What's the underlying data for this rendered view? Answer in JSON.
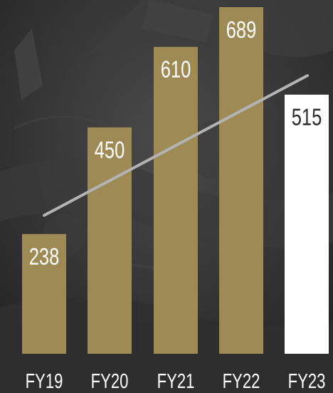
{
  "chart_data": {
    "type": "bar",
    "categories": [
      "FY19",
      "FY20",
      "FY21",
      "FY22",
      "FY23"
    ],
    "values": [
      238,
      450,
      610,
      689,
      515
    ],
    "value_labels": [
      "238",
      "450",
      "610",
      "689",
      "515"
    ],
    "ylim": [
      0,
      700
    ],
    "grid": false,
    "trendline": {
      "visible": true,
      "color": "#b3b3b3"
    },
    "colors": {
      "bar": "#9e8a55",
      "highlight_bar": "#ffffff",
      "label_on_bar": "#ffffff",
      "label_on_highlight": "#2b2b2b",
      "tick_label": "#ffffff",
      "background": "#2a2a2a"
    },
    "highlight_index": 4
  }
}
